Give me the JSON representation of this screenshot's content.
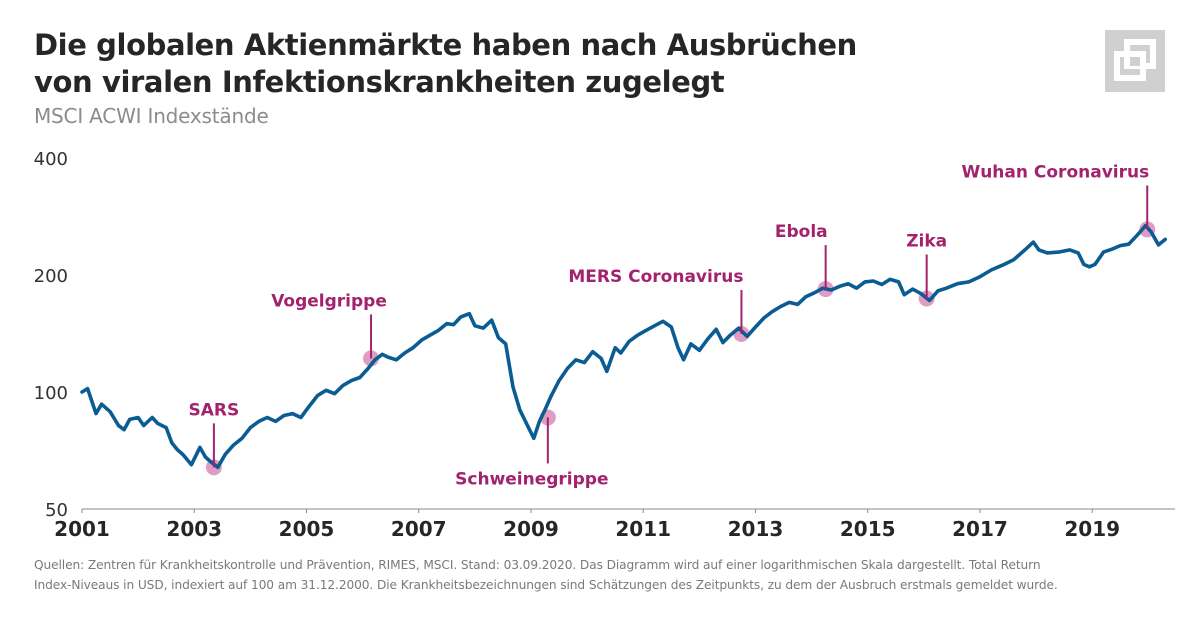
{
  "header": {
    "title_line1": "Die globalen Aktienmärkte haben nach Ausbrüchen",
    "title_line2": "von viralen Infektionskrankheiten zugelegt",
    "subtitle": "MSCI ACWI Indexstände",
    "logo_icon": "overlapping-squares-logo-icon"
  },
  "footnote": {
    "line1": "Quellen: Zentren für Krankheitskontrolle und Prävention, RIMES, MSCI. Stand: 03.09.2020. Das Diagramm wird auf einer logarithmischen Skala dargestellt. Total Return",
    "line2": "Index-Niveaus in USD, indexiert auf 100 am 31.12.2000. Die Krankheitsbezeichnungen sind Schätzungen des Zeitpunkts, zu dem der Ausbruch erstmals gemeldet wurde."
  },
  "colors": {
    "line": "#0a5c92",
    "annotation": "#a3226e",
    "marker": "#d98cb8",
    "axis": "#8a8a8a"
  },
  "chart_data": {
    "type": "line",
    "title": "Die globalen Aktienmärkte haben nach Ausbrüchen von viralen Infektionskrankheiten zugelegt",
    "subtitle": "MSCI ACWI Indexstände",
    "xlabel": "",
    "ylabel": "",
    "yscale": "log",
    "ylim": [
      50,
      400
    ],
    "xlim": [
      2001,
      2020.35
    ],
    "yticks": [
      50,
      100,
      200,
      400
    ],
    "ytick_labels": [
      "50",
      "100",
      "200",
      "400"
    ],
    "xticks": [
      2001,
      2003,
      2005,
      2007,
      2009,
      2011,
      2013,
      2015,
      2017,
      2019
    ],
    "xtick_labels": [
      "2001",
      "2003",
      "2005",
      "2007",
      "2009",
      "2011",
      "2013",
      "2015",
      "2017",
      "2019"
    ],
    "grid": false,
    "legend": "none",
    "series": [
      {
        "name": "MSCI ACWI",
        "x": [
          2001.0,
          2001.1,
          2001.25,
          2001.35,
          2001.5,
          2001.65,
          2001.75,
          2001.85,
          2002.0,
          2002.1,
          2002.25,
          2002.35,
          2002.5,
          2002.6,
          2002.7,
          2002.8,
          2002.95,
          2003.1,
          2003.2,
          2003.3,
          2003.42,
          2003.55,
          2003.7,
          2003.85,
          2004.0,
          2004.15,
          2004.3,
          2004.45,
          2004.6,
          2004.75,
          2004.9,
          2005.05,
          2005.2,
          2005.35,
          2005.5,
          2005.65,
          2005.8,
          2005.95,
          2006.1,
          2006.22,
          2006.35,
          2006.45,
          2006.6,
          2006.75,
          2006.9,
          2007.05,
          2007.2,
          2007.35,
          2007.5,
          2007.62,
          2007.75,
          2007.9,
          2008.0,
          2008.15,
          2008.3,
          2008.42,
          2008.55,
          2008.68,
          2008.8,
          2008.92,
          2009.05,
          2009.15,
          2009.25,
          2009.35,
          2009.5,
          2009.65,
          2009.8,
          2009.95,
          2010.1,
          2010.25,
          2010.35,
          2010.5,
          2010.6,
          2010.75,
          2010.9,
          2011.05,
          2011.2,
          2011.35,
          2011.5,
          2011.62,
          2011.72,
          2011.85,
          2012.0,
          2012.15,
          2012.3,
          2012.42,
          2012.55,
          2012.7,
          2012.85,
          2013.0,
          2013.15,
          2013.3,
          2013.45,
          2013.6,
          2013.75,
          2013.9,
          2014.05,
          2014.2,
          2014.35,
          2014.5,
          2014.65,
          2014.8,
          2014.95,
          2015.1,
          2015.25,
          2015.4,
          2015.55,
          2015.65,
          2015.8,
          2015.95,
          2016.1,
          2016.25,
          2016.4,
          2016.6,
          2016.8,
          2017.0,
          2017.2,
          2017.4,
          2017.6,
          2017.8,
          2017.95,
          2018.05,
          2018.2,
          2018.4,
          2018.6,
          2018.75,
          2018.85,
          2018.95,
          2019.05,
          2019.2,
          2019.35,
          2019.5,
          2019.65,
          2019.8,
          2019.95,
          2020.05,
          2020.18,
          2020.3
        ],
        "y": [
          100,
          102,
          88,
          93,
          89,
          82,
          80,
          85,
          86,
          82,
          86,
          83,
          81,
          74,
          71,
          69,
          65,
          72,
          68,
          66,
          64,
          69,
          73,
          76,
          81,
          84,
          86,
          84,
          87,
          88,
          86,
          92,
          98,
          101,
          99,
          104,
          107,
          109,
          115,
          121,
          125,
          123,
          121,
          126,
          130,
          136,
          140,
          144,
          150,
          149,
          156,
          159,
          148,
          146,
          153,
          138,
          133,
          103,
          90,
          83,
          76,
          84,
          90,
          97,
          107,
          115,
          121,
          119,
          127,
          122,
          113,
          130,
          126,
          135,
          140,
          144,
          148,
          152,
          147,
          130,
          121,
          133,
          128,
          137,
          145,
          134,
          140,
          146,
          139,
          147,
          155,
          161,
          166,
          170,
          168,
          176,
          180,
          185,
          183,
          187,
          190,
          185,
          192,
          193,
          189,
          195,
          192,
          178,
          184,
          179,
          172,
          182,
          185,
          190,
          192,
          198,
          206,
          212,
          219,
          232,
          243,
          232,
          228,
          229,
          232,
          228,
          213,
          210,
          213,
          229,
          233,
          238,
          240,
          253,
          268,
          258,
          239,
          247
        ]
      }
    ],
    "annotations": [
      {
        "label": "SARS",
        "x": 2003.35,
        "y": 64,
        "position": "above"
      },
      {
        "label": "Vogelgrippe",
        "x": 2006.15,
        "y": 122,
        "position": "above"
      },
      {
        "label": "Schweinegrippe",
        "x": 2009.3,
        "y": 86,
        "position": "below"
      },
      {
        "label": "MERS Coronavirus",
        "x": 2012.75,
        "y": 141,
        "position": "above"
      },
      {
        "label": "Ebola",
        "x": 2014.25,
        "y": 184,
        "position": "above"
      },
      {
        "label": "Zika",
        "x": 2016.05,
        "y": 174,
        "position": "above"
      },
      {
        "label": "Wuhan Coronavirus",
        "x": 2019.98,
        "y": 262,
        "position": "above"
      }
    ]
  }
}
